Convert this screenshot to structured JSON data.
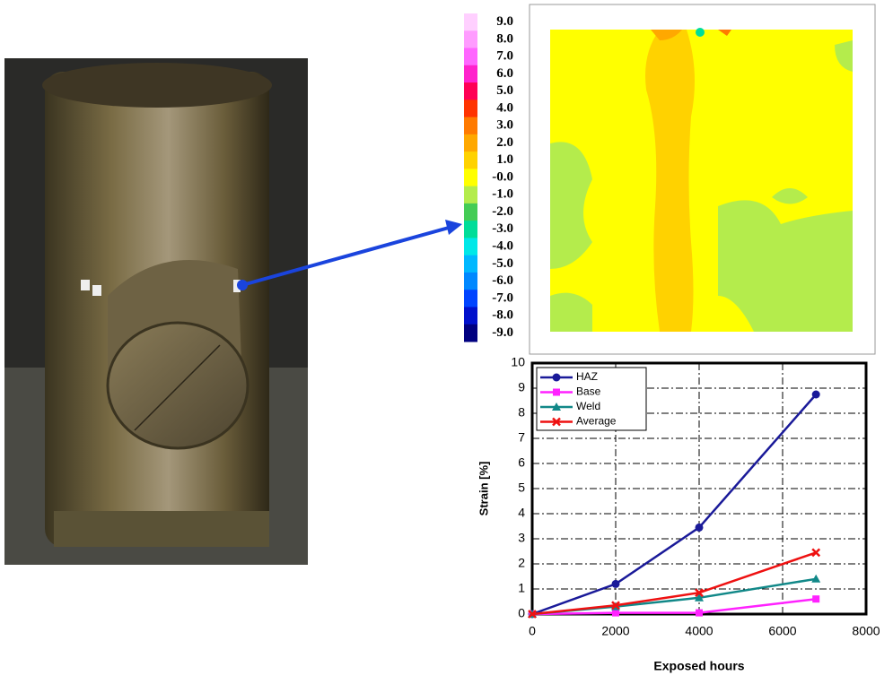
{
  "chart_data": [
    {
      "type": "contour",
      "colorbar": [
        {
          "value": 9,
          "label": "9.0"
        },
        {
          "value": 8,
          "label": "8.0"
        },
        {
          "value": 7,
          "label": "7.0"
        },
        {
          "value": 6,
          "label": "6.0"
        },
        {
          "value": 5,
          "label": "5.0"
        },
        {
          "value": 4,
          "label": "4.0"
        },
        {
          "value": 3,
          "label": "3.0"
        },
        {
          "value": 2,
          "label": "2.0"
        },
        {
          "value": 1,
          "label": "1.0"
        },
        {
          "value": 0,
          "label": "-0.0"
        },
        {
          "value": -1,
          "label": "-1.0"
        },
        {
          "value": -2,
          "label": "-2.0"
        },
        {
          "value": -3,
          "label": "-3.0"
        },
        {
          "value": -4,
          "label": "-4.0"
        },
        {
          "value": -5,
          "label": "-5.0"
        },
        {
          "value": -6,
          "label": "-6.0"
        },
        {
          "value": -7,
          "label": "-7.0"
        },
        {
          "value": -8,
          "label": "-8.0"
        },
        {
          "value": -9,
          "label": "-9.0"
        }
      ],
      "colors": [
        "#ffd0ff",
        "#ff9cff",
        "#ff66ff",
        "#ff22cc",
        "#ff0055",
        "#ff3300",
        "#ff7a00",
        "#ffa800",
        "#ffd200",
        "#ffff00",
        "#b4ec4c",
        "#44cc55",
        "#00dd99",
        "#00e8e8",
        "#00b8ff",
        "#0088ff",
        "#0044ff",
        "#0010cc",
        "#000080"
      ]
    },
    {
      "type": "line",
      "xlabel": "Exposed hours",
      "ylabel": "Strain [%]",
      "x": [
        0,
        2000,
        4000,
        6800
      ],
      "series": [
        {
          "name": "HAZ",
          "color": "#1a1a99",
          "marker": "circle",
          "values": [
            0,
            1.2,
            3.45,
            8.75
          ]
        },
        {
          "name": "Base",
          "color": "#ff22ff",
          "marker": "square",
          "values": [
            0,
            0.05,
            0.05,
            0.6
          ]
        },
        {
          "name": "Weld",
          "color": "#118888",
          "marker": "triangle",
          "values": [
            0,
            0.3,
            0.65,
            1.4
          ]
        },
        {
          "name": "Average",
          "color": "#ee1111",
          "marker": "x",
          "values": [
            0,
            0.35,
            0.85,
            2.45
          ]
        }
      ],
      "xlim": [
        0,
        8000
      ],
      "xticks": [
        0,
        2000,
        4000,
        6000,
        8000
      ],
      "ylim": [
        0,
        10
      ],
      "yticks": [
        0,
        1,
        2,
        3,
        4,
        5,
        6,
        7,
        8,
        9,
        10
      ],
      "grid": true,
      "legend": "top-left"
    }
  ]
}
